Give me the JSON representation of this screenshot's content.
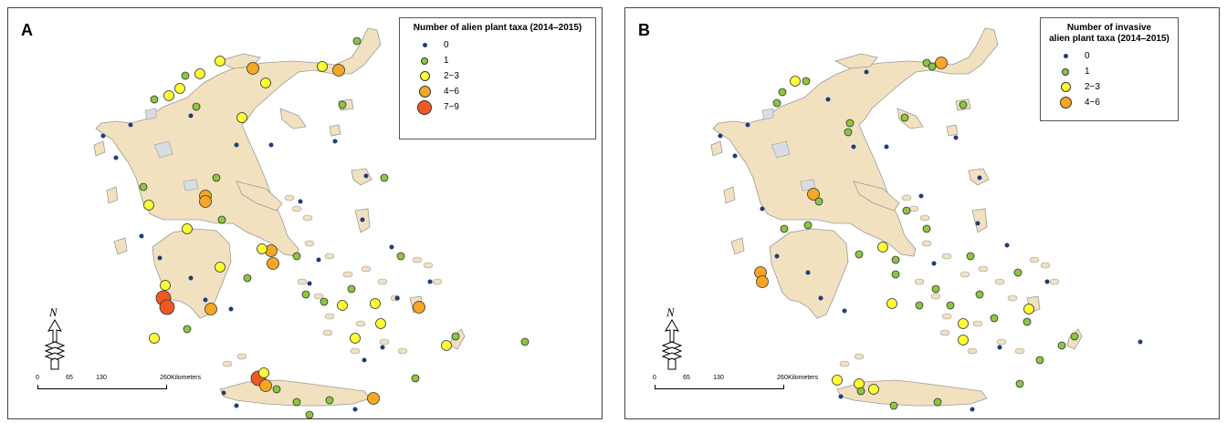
{
  "panels": [
    {
      "letter": "A",
      "legend": {
        "title_lines": [
          "Number of alien plant taxa (2014–2015)"
        ],
        "items": [
          {
            "label": "0",
            "color": "#1f3c7a",
            "size": "tiny"
          },
          {
            "label": "1",
            "color": "#8cc63f",
            "size": "small"
          },
          {
            "label": "2−3",
            "color": "#ffff33",
            "size": "medium"
          },
          {
            "label": "4−6",
            "color": "#f5a623",
            "size": "large"
          },
          {
            "label": "7−9",
            "color": "#f05a22",
            "size": "xlarge"
          }
        ]
      }
    },
    {
      "letter": "B",
      "legend": {
        "title_lines": [
          "Number of invasive",
          "alien plant taxa (2014–2015)"
        ],
        "items": [
          {
            "label": "0",
            "color": "#1f3c7a",
            "size": "tiny"
          },
          {
            "label": "1",
            "color": "#8cc63f",
            "size": "small"
          },
          {
            "label": "2−3",
            "color": "#ffff33",
            "size": "medium"
          },
          {
            "label": "4−6",
            "color": "#f5a623",
            "size": "large"
          }
        ]
      }
    }
  ],
  "north_arrow": {
    "label": "N",
    "icon": "north-arrow-icon"
  },
  "scale": {
    "ticks": [
      "0",
      "65",
      "130",
      "260"
    ],
    "tick_values": [
      0,
      65,
      130,
      260
    ],
    "unit": "Kilometers"
  },
  "colors": {
    "land": "#f2e1bf",
    "land_stroke": "#9a9a9a",
    "lake": "#d7dde3"
  }
}
